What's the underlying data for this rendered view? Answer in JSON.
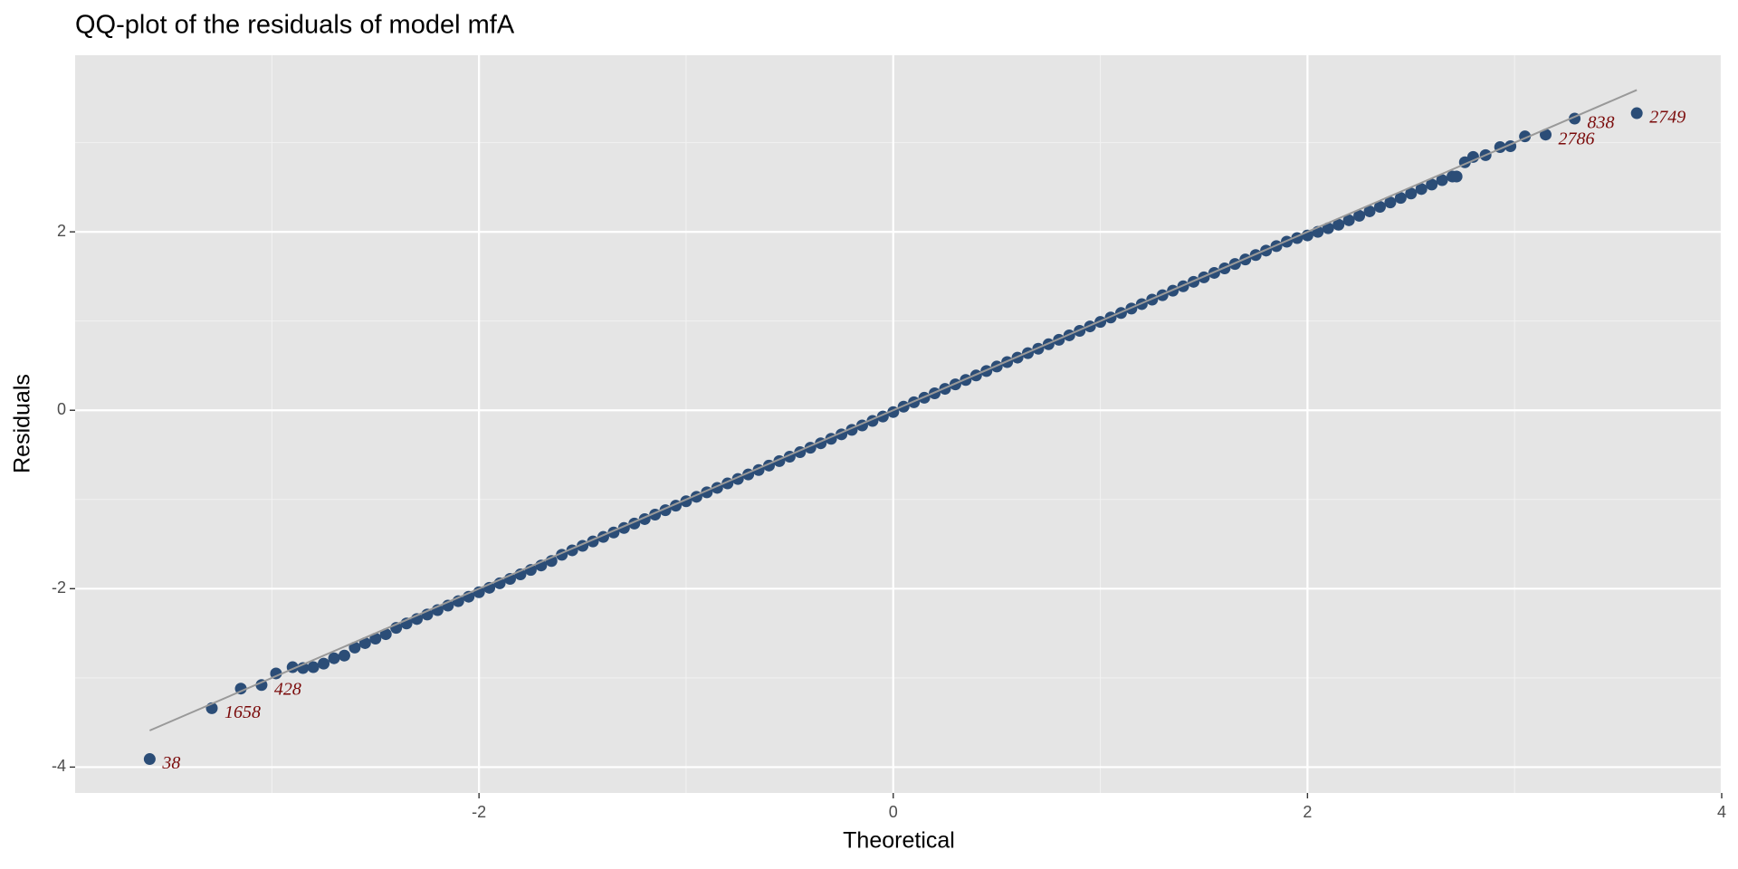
{
  "chart_data": {
    "type": "scatter",
    "title": "QQ-plot of the residuals of model mfA",
    "xlabel": "Theoretical",
    "ylabel": "Residuals",
    "xlim": [
      -3.95,
      4.0
    ],
    "ylim": [
      -4.29,
      3.98
    ],
    "xticks": [
      -2,
      0,
      2,
      4
    ],
    "yticks": [
      -4,
      -2,
      0,
      2
    ],
    "x_minor_grid": [
      -3,
      -1,
      1,
      3
    ],
    "y_minor_grid": [
      -3,
      -1,
      1,
      3
    ],
    "grid": true,
    "color": "#2b4d77",
    "x": [
      -3.59,
      -3.29,
      -3.15,
      -3.05,
      -2.98,
      -2.9,
      -2.85,
      -2.8,
      -2.75,
      -2.7,
      -2.65,
      -2.6,
      -2.55,
      -2.5,
      -2.45,
      -2.4,
      -2.35,
      -2.3,
      -2.25,
      -2.2,
      -2.15,
      -2.1,
      -2.05,
      -2.0,
      -1.95,
      -1.9,
      -1.85,
      -1.8,
      -1.75,
      -1.7,
      -1.65,
      -1.6,
      -1.55,
      -1.5,
      -1.45,
      -1.4,
      -1.35,
      -1.3,
      -1.25,
      -1.2,
      -1.15,
      -1.1,
      -1.05,
      -1.0,
      -0.95,
      -0.9,
      -0.85,
      -0.8,
      -0.75,
      -0.7,
      -0.65,
      -0.6,
      -0.55,
      -0.5,
      -0.45,
      -0.4,
      -0.35,
      -0.3,
      -0.25,
      -0.2,
      -0.15,
      -0.1,
      -0.05,
      0.0,
      0.05,
      0.1,
      0.15,
      0.2,
      0.25,
      0.3,
      0.35,
      0.4,
      0.45,
      0.5,
      0.55,
      0.6,
      0.65,
      0.7,
      0.75,
      0.8,
      0.85,
      0.9,
      0.95,
      1.0,
      1.05,
      1.1,
      1.15,
      1.2,
      1.25,
      1.3,
      1.35,
      1.4,
      1.45,
      1.5,
      1.55,
      1.6,
      1.65,
      1.7,
      1.75,
      1.8,
      1.85,
      1.9,
      1.95,
      2.0,
      2.05,
      2.1,
      2.15,
      2.2,
      2.25,
      2.3,
      2.35,
      2.4,
      2.45,
      2.5,
      2.55,
      2.6,
      2.65,
      2.7,
      2.72,
      2.76,
      2.8,
      2.86,
      2.93,
      2.98,
      3.05,
      3.15,
      3.29,
      3.59
    ],
    "values": [
      -3.91,
      -3.34,
      -3.12,
      -3.08,
      -2.95,
      -2.88,
      -2.89,
      -2.88,
      -2.84,
      -2.78,
      -2.75,
      -2.66,
      -2.61,
      -2.56,
      -2.51,
      -2.44,
      -2.39,
      -2.34,
      -2.29,
      -2.24,
      -2.19,
      -2.14,
      -2.09,
      -2.04,
      -1.99,
      -1.94,
      -1.89,
      -1.84,
      -1.79,
      -1.74,
      -1.69,
      -1.62,
      -1.57,
      -1.52,
      -1.47,
      -1.42,
      -1.37,
      -1.32,
      -1.27,
      -1.22,
      -1.17,
      -1.12,
      -1.07,
      -1.02,
      -0.97,
      -0.92,
      -0.87,
      -0.82,
      -0.77,
      -0.72,
      -0.67,
      -0.62,
      -0.57,
      -0.52,
      -0.47,
      -0.42,
      -0.37,
      -0.32,
      -0.27,
      -0.22,
      -0.17,
      -0.12,
      -0.07,
      -0.02,
      0.04,
      0.09,
      0.14,
      0.19,
      0.24,
      0.29,
      0.34,
      0.39,
      0.44,
      0.49,
      0.54,
      0.59,
      0.64,
      0.69,
      0.74,
      0.79,
      0.84,
      0.89,
      0.94,
      0.99,
      1.04,
      1.09,
      1.14,
      1.19,
      1.24,
      1.29,
      1.34,
      1.39,
      1.44,
      1.49,
      1.54,
      1.59,
      1.64,
      1.69,
      1.74,
      1.79,
      1.84,
      1.89,
      1.93,
      1.96,
      2.0,
      2.04,
      2.08,
      2.13,
      2.18,
      2.23,
      2.28,
      2.33,
      2.38,
      2.43,
      2.48,
      2.53,
      2.58,
      2.62,
      2.62,
      2.78,
      2.84,
      2.86,
      2.95,
      2.96,
      3.07,
      3.09,
      3.27,
      3.33
    ],
    "reference_line": {
      "color": "#999999",
      "x": [
        -3.59,
        3.59
      ],
      "y": [
        -3.59,
        3.59
      ]
    },
    "annotations": [
      {
        "text": "38",
        "x": -3.59,
        "y": -3.91
      },
      {
        "text": "1658",
        "x": -3.29,
        "y": -3.34
      },
      {
        "text": "428",
        "x": -3.05,
        "y": -3.08
      },
      {
        "text": "2786",
        "x": 3.15,
        "y": 3.09
      },
      {
        "text": "838",
        "x": 3.29,
        "y": 3.27
      },
      {
        "text": "2749",
        "x": 3.59,
        "y": 3.33
      }
    ],
    "annotation_color": "#7a0a0a"
  }
}
